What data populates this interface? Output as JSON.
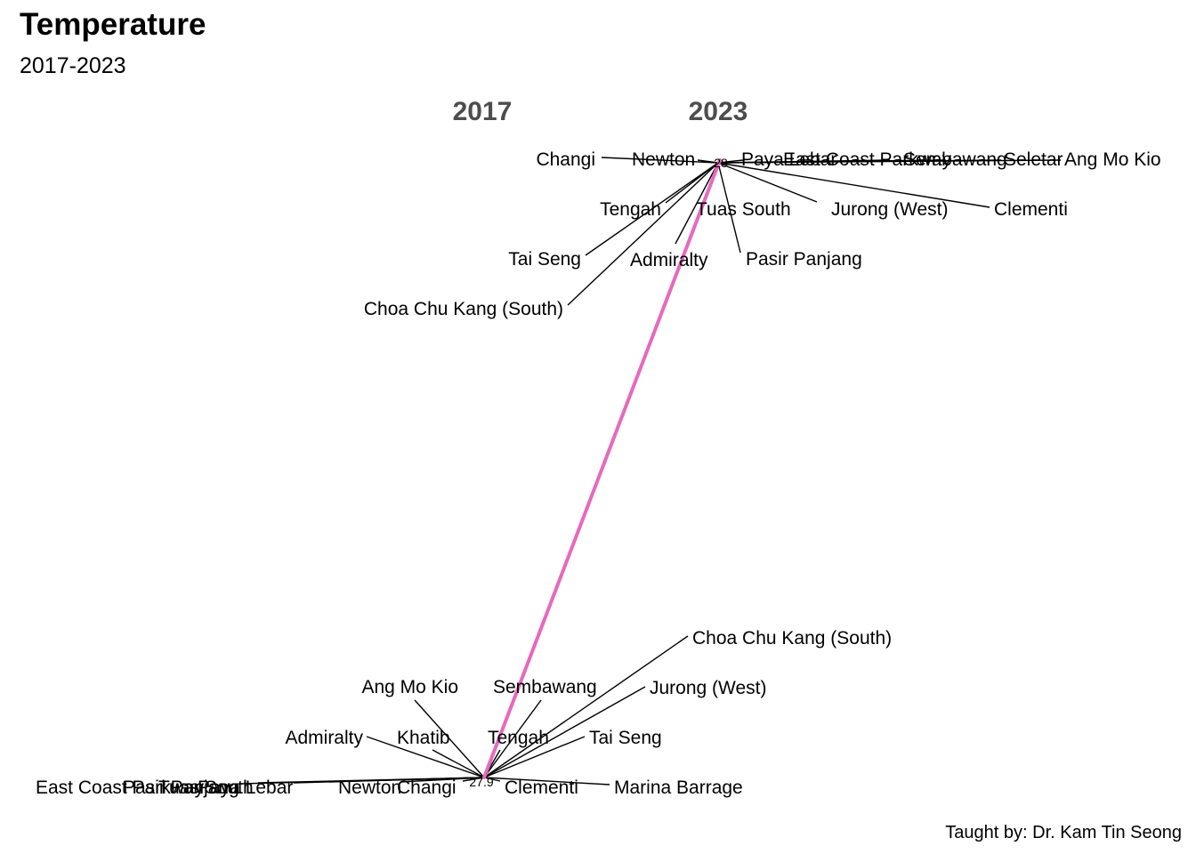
{
  "title": "Temperature",
  "subtitle": "2017-2023",
  "caption": "Taught by: Dr. Kam Tin Seong",
  "colors": {
    "slope_line": "#e769bd",
    "header_text": "#4d4d4d",
    "text": "#000000",
    "background": "#ffffff"
  },
  "chart_data": {
    "type": "line",
    "chart_subtype": "slopegraph",
    "categories": [
      "2017",
      "2023"
    ],
    "series": [
      {
        "values": [
          27.9,
          28.0
        ]
      }
    ],
    "value_labels": {
      "start": "27.9",
      "end": "28"
    },
    "label_lists": {
      "start": [
        "East Coast Parkway",
        "Pasir Panjang",
        "Tuas South",
        "Paya Lebar",
        "Newton",
        "Changi",
        "Clementi",
        "Marina Barrage",
        "Admiralty",
        "Khatib",
        "Tengah",
        "Tai Seng",
        "Ang Mo Kio",
        "Sembawang",
        "Jurong (West)",
        "Choa Chu Kang (South)"
      ],
      "end": [
        "Changi",
        "Newton",
        "Paya Lebar",
        "East Coast Parkway",
        "Sembawang",
        "Seletar",
        "Ang Mo Kio",
        "Tengah",
        "Tuas South",
        "Jurong (West)",
        "Clementi",
        "Tai Seng",
        "Admiralty",
        "Pasir Panjang",
        "Choa Chu Kang (South)"
      ]
    },
    "legend": "none",
    "grid": false
  }
}
